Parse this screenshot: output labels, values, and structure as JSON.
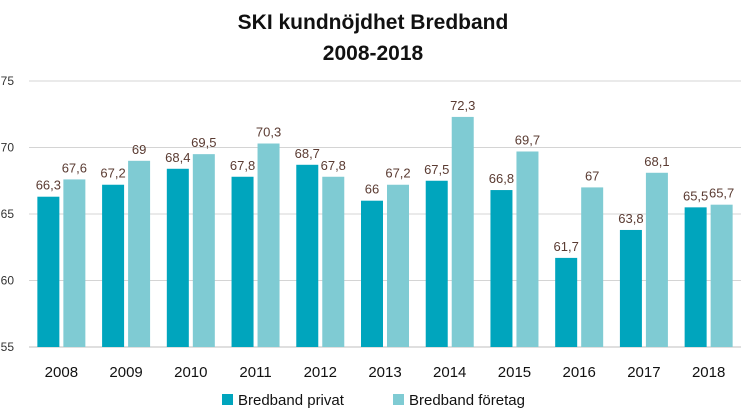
{
  "chart_data": {
    "type": "bar",
    "title_lines": [
      "SKI kundnöjdhet Bredband",
      "2008-2018"
    ],
    "categories": [
      "2008",
      "2009",
      "2010",
      "2011",
      "2012",
      "2013",
      "2014",
      "2015",
      "2016",
      "2017",
      "2018"
    ],
    "series": [
      {
        "name": "Bredband privat",
        "color": "#00a5bd",
        "values": [
          66.3,
          67.2,
          68.4,
          67.8,
          68.7,
          66,
          67.5,
          66.8,
          61.7,
          63.8,
          65.5
        ],
        "labels": [
          "66,3",
          "67,2",
          "68,4",
          "67,8",
          "68,7",
          "66",
          "67,5",
          "66,8",
          "61,7",
          "63,8",
          "65,5"
        ]
      },
      {
        "name": "Bredband företag",
        "color": "#7fcbd3",
        "values": [
          67.6,
          69,
          69.5,
          70.3,
          67.8,
          67.2,
          72.3,
          69.7,
          67,
          68.1,
          65.7
        ],
        "labels": [
          "67,6",
          "69",
          "69,5",
          "70,3",
          "67,8",
          "67,2",
          "72,3",
          "69,7",
          "67",
          "68,1",
          "65,7"
        ]
      }
    ],
    "ylim": [
      55,
      75
    ],
    "yticks": [
      "55",
      "60",
      "65",
      "70",
      "75"
    ],
    "grid": true,
    "legend_position": "bottom"
  }
}
